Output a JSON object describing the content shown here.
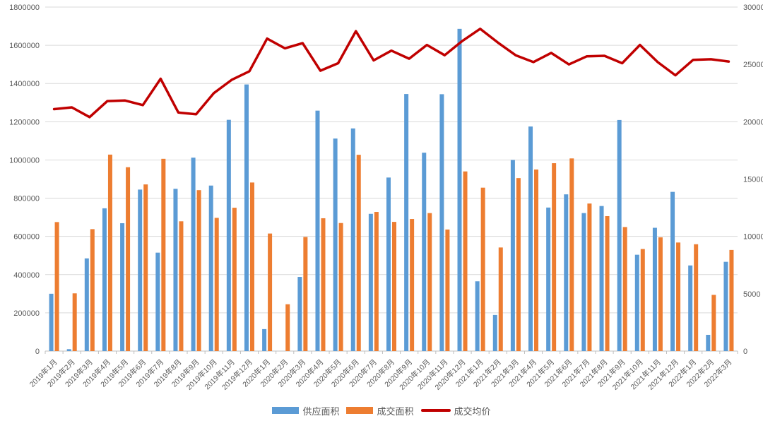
{
  "chart_data": {
    "type": "bar+line",
    "title": "",
    "categories": [
      "2019年1月",
      "2019年2月",
      "2019年3月",
      "2019年4月",
      "2019年5月",
      "2019年6月",
      "2019年7月",
      "2019年8月",
      "2019年9月",
      "2019年10月",
      "2019年11月",
      "2019年12月",
      "2020年1月",
      "2020年2月",
      "2020年3月",
      "2020年4月",
      "2020年5月",
      "2020年6月",
      "2020年7月",
      "2020年8月",
      "2020年9月",
      "2020年10月",
      "2020年11月",
      "2020年12月",
      "2021年1月",
      "2021年2月",
      "2021年3月",
      "2021年4月",
      "2021年5月",
      "2021年6月",
      "2021年7月",
      "2021年8月",
      "2021年9月",
      "2021年10月",
      "2021年11月",
      "2021年12月",
      "2022年1月",
      "2022年2月",
      "2022年3月"
    ],
    "series": [
      {
        "name": "供应面积",
        "type": "bar",
        "axis": "left",
        "color": "#5B9BD5",
        "values": [
          300000,
          10000,
          485000,
          747000,
          669000,
          845000,
          515000,
          849000,
          1012000,
          866000,
          1210000,
          1395000,
          115000,
          0,
          388000,
          1258000,
          1112000,
          1165000,
          718000,
          908000,
          1345000,
          1038000,
          1344000,
          1686000,
          365000,
          189000,
          1000000,
          1175000,
          751000,
          820000,
          722000,
          759000,
          1209000,
          504000,
          645000,
          833000,
          448000,
          85000,
          467000
        ]
      },
      {
        "name": "成交面积",
        "type": "bar",
        "axis": "left",
        "color": "#ED7D31",
        "values": [
          675000,
          302000,
          638000,
          1028000,
          962000,
          872000,
          1006000,
          679000,
          842000,
          697000,
          750000,
          882000,
          615000,
          245000,
          597000,
          695000,
          670000,
          1027000,
          728000,
          676000,
          691000,
          722000,
          636000,
          940000,
          855000,
          542000,
          905000,
          950000,
          983000,
          1008000,
          772000,
          706000,
          649000,
          534000,
          595000,
          568000,
          559000,
          294000,
          529000
        ]
      },
      {
        "name": "成交均价",
        "type": "line",
        "axis": "right",
        "color": "#C00000",
        "values": [
          21100,
          21250,
          20400,
          21800,
          21850,
          21450,
          23750,
          20800,
          20650,
          22500,
          23650,
          24400,
          27250,
          26400,
          26850,
          24450,
          25100,
          27900,
          25350,
          26200,
          25500,
          26700,
          25800,
          27050,
          28100,
          26900,
          25800,
          25200,
          26000,
          25000,
          25700,
          25750,
          25100,
          26700,
          25200,
          24050,
          25400,
          25450,
          25250
        ]
      }
    ],
    "left_axis": {
      "min": 0,
      "max": 1800000,
      "step": 200000,
      "tick_labels": [
        "0",
        "200000",
        "400000",
        "600000",
        "800000",
        "1000000",
        "1200000",
        "1400000",
        "1600000",
        "1800000"
      ]
    },
    "right_axis": {
      "min": 0,
      "max": 30000,
      "step": 5000,
      "tick_labels": [
        "0",
        "5000",
        "10000",
        "15000",
        "20000",
        "25000",
        "30000"
      ]
    },
    "grid": true,
    "legend_position": "bottom"
  },
  "legend": {
    "supply": "供应面积",
    "transaction": "成交面积",
    "price": "成交均价"
  },
  "colors": {
    "supply": "#5B9BD5",
    "transaction": "#ED7D31",
    "price": "#C00000",
    "grid": "#D9D9D9",
    "axis_line": "#BFBFBF",
    "axis_text": "#595959",
    "background": "#FFFFFF"
  }
}
